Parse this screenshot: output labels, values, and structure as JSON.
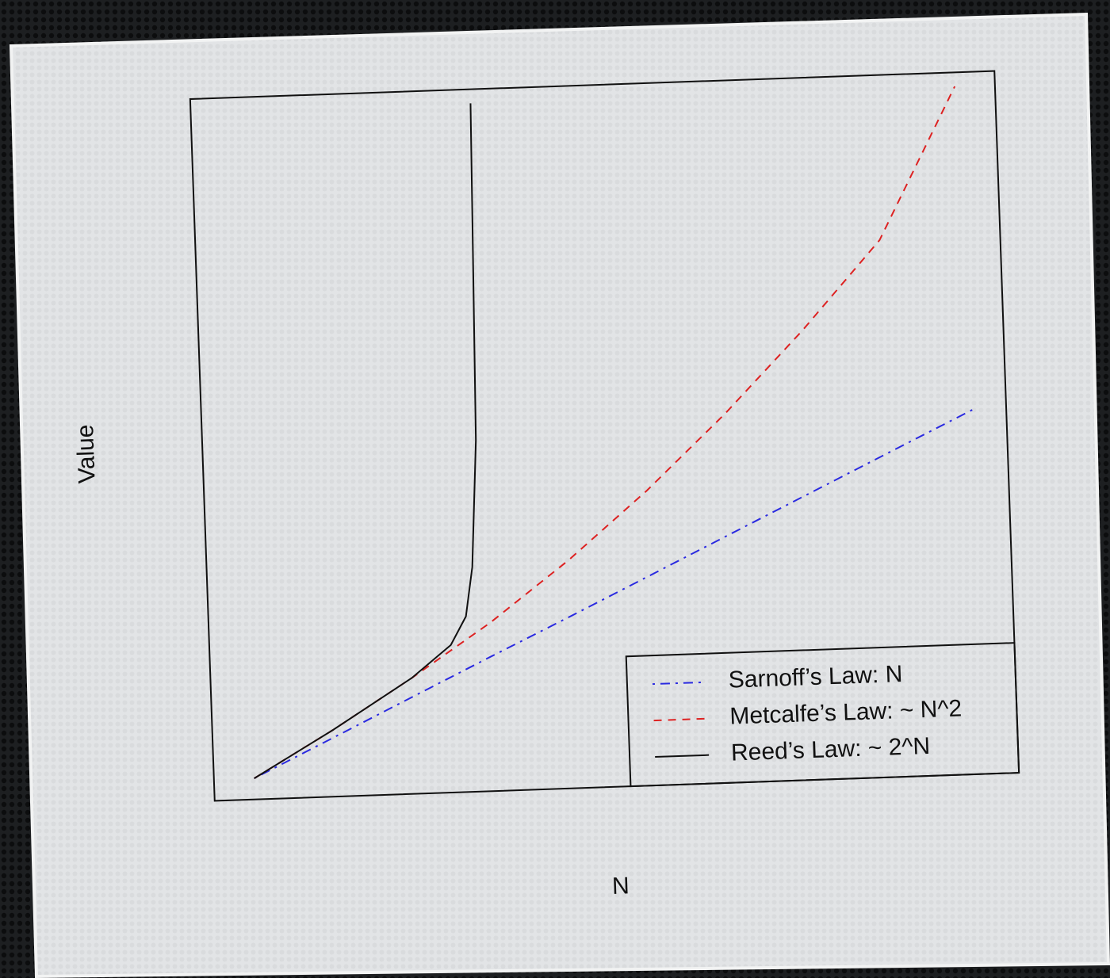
{
  "chart_data": {
    "type": "line",
    "x_label": "N",
    "y_label": "Value",
    "xlim": [
      0,
      100
    ],
    "ylim": [
      0,
      100
    ],
    "legend": "bottom right",
    "series": [
      {
        "name": "Sarnoff’s Law: N",
        "color": "#2a2ae0",
        "linestyle": "dashdot",
        "x": [
          5,
          15,
          25,
          35,
          45,
          55,
          65,
          75,
          85,
          96
        ],
        "values": [
          3,
          8.4,
          13.8,
          19.2,
          24.5,
          29.9,
          35.3,
          40.7,
          46.1,
          52
        ]
      },
      {
        "name": "Metcalfe’s Law: ~ N^2",
        "color": "#dd2222",
        "linestyle": "dashed",
        "x": [
          5,
          15,
          25,
          35,
          45,
          55,
          65,
          75,
          85,
          95
        ],
        "values": [
          3,
          9.5,
          16.5,
          24,
          32.5,
          42,
          52.5,
          64,
          76.5,
          98
        ]
      },
      {
        "name": "Reed’s Law: ~ 2^N",
        "color": "#111111",
        "linestyle": "solid",
        "x": [
          5,
          15,
          25,
          30,
          32,
          33,
          34,
          34.5,
          34.8
        ],
        "values": [
          3,
          9.5,
          16.5,
          21,
          25,
          32,
          50,
          80,
          98
        ]
      }
    ]
  }
}
